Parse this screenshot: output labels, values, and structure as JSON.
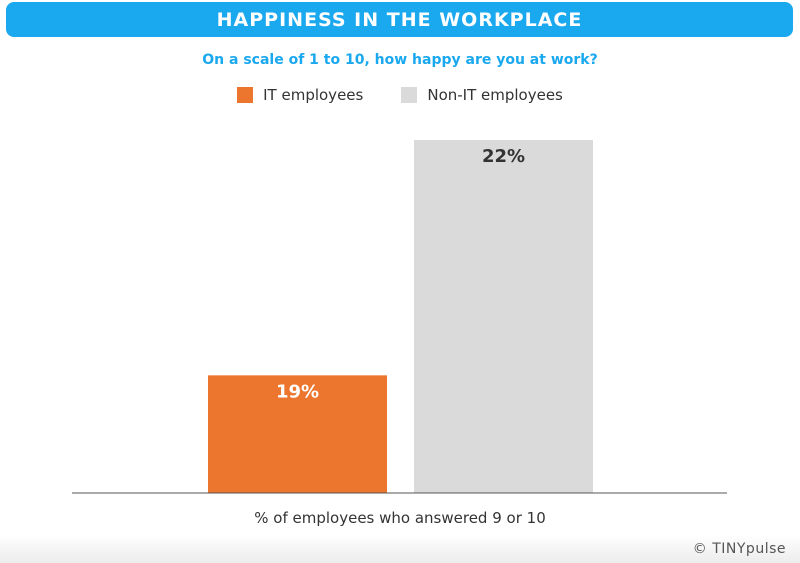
{
  "chart_data": {
    "type": "bar",
    "title": "HAPPINESS IN THE WORKPLACE",
    "subtitle": "On a scale of 1 to 10, how happy are you at work?",
    "categories": [
      "IT employees",
      "Non-IT employees"
    ],
    "values": [
      19,
      22
    ],
    "data_labels": [
      "19%",
      "22%"
    ],
    "colors": [
      "#ec762e",
      "#dadada"
    ],
    "label_colors": [
      "#ffffff",
      "#333333"
    ],
    "xlabel": "% of employees who answered 9 or 10",
    "ylabel": "",
    "ylim": [
      17.5,
      22
    ],
    "grid": false,
    "legend": {
      "placement": "top",
      "entries": [
        "IT employees",
        "Non-IT employees"
      ]
    },
    "accent_color": "#1aa8ef"
  },
  "credit": "© TINYpulse"
}
